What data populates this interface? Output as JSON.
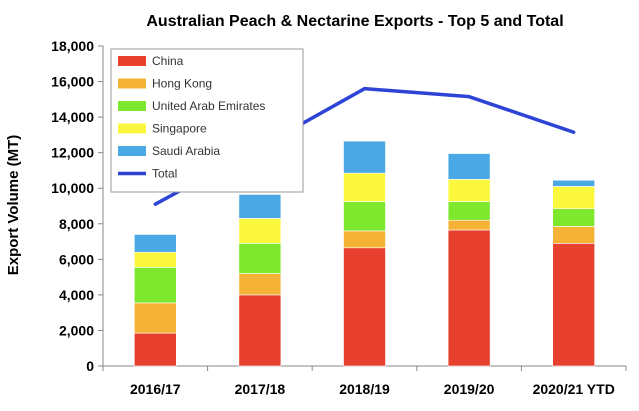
{
  "chart_data": {
    "type": "bar",
    "stacked": true,
    "title": "Australian Peach & Nectarine Exports - Top 5 and Total",
    "xlabel": "",
    "ylabel": "Export Volume (MT)",
    "ylim": [
      0,
      18000
    ],
    "yticks": [
      0,
      2000,
      4000,
      6000,
      8000,
      10000,
      12000,
      14000,
      16000,
      18000
    ],
    "ytick_labels": [
      "0",
      "2,000",
      "4,000",
      "6,000",
      "8,000",
      "10,000",
      "12,000",
      "14,000",
      "16,000",
      "18,000"
    ],
    "categories": [
      "2016/17",
      "2017/18",
      "2018/19",
      "2019/20",
      "2020/21 YTD"
    ],
    "series": [
      {
        "name": "China",
        "kind": "bar",
        "color": "#e8402f",
        "values": [
          1850,
          4000,
          6650,
          7650,
          6900
        ]
      },
      {
        "name": "Hong Kong",
        "kind": "bar",
        "color": "#f5b335",
        "values": [
          1700,
          1200,
          950,
          550,
          950
        ]
      },
      {
        "name": "United Arab Emirates",
        "kind": "bar",
        "color": "#7de82e",
        "values": [
          2000,
          1700,
          1650,
          1050,
          1000
        ]
      },
      {
        "name": "Singapore",
        "kind": "bar",
        "color": "#fbf73d",
        "values": [
          850,
          1400,
          1600,
          1250,
          1250
        ]
      },
      {
        "name": "Saudi Arabia",
        "kind": "bar",
        "color": "#4aa9e4",
        "values": [
          1000,
          1350,
          1800,
          1450,
          350
        ]
      },
      {
        "name": "Total",
        "kind": "line",
        "color": "#2e44d6",
        "values": [
          9100,
          12300,
          15600,
          15150,
          13150
        ]
      }
    ],
    "legend": {
      "position": "top-left",
      "boxed": true
    },
    "grid": false
  }
}
